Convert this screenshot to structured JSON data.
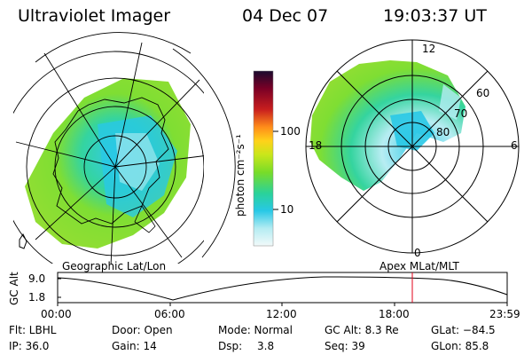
{
  "header": {
    "instrument": "Ultraviolet Imager",
    "date": "04 Dec 07",
    "time": "19:03:37 UT"
  },
  "geo_panel": {
    "label": "Geographic Lat/Lon"
  },
  "mlt_panel": {
    "label": "Apex MLat/MLT",
    "mlt_labels": [
      "12",
      "18",
      "6",
      "0"
    ],
    "lat_labels": [
      "60",
      "70",
      "80"
    ]
  },
  "colorbar": {
    "label": "photon cm⁻²s⁻¹",
    "ticks": [
      "100",
      "10"
    ],
    "colors": [
      "#1a0a2e",
      "#7a0026",
      "#c81e1e",
      "#ff8c1a",
      "#ffd21a",
      "#c8e61a",
      "#78dc28",
      "#2ad29a",
      "#28c8e6",
      "#b4ecf2",
      "#f2fafa"
    ]
  },
  "altitude_plot": {
    "ylabel": "GC Alt",
    "y_ticks": [
      "9.0",
      "1.8"
    ],
    "x_ticks": [
      "00:00",
      "06:00",
      "12:00",
      "18:00",
      "23:59"
    ],
    "marker_color": "#e0001a"
  },
  "status": {
    "flt": "Flt: LBHL",
    "ip": "IP: 36.0",
    "door": "Door: Open",
    "gain": "Gain: 14",
    "mode": "Mode: Normal",
    "dsp_label": "Dsp:",
    "dsp_value": "3.8",
    "gc_alt": "GC Alt: 8.3 Re",
    "seq": "Seq: 39",
    "glat": "GLat: −84.5",
    "glon": "GLon: 85.8"
  }
}
